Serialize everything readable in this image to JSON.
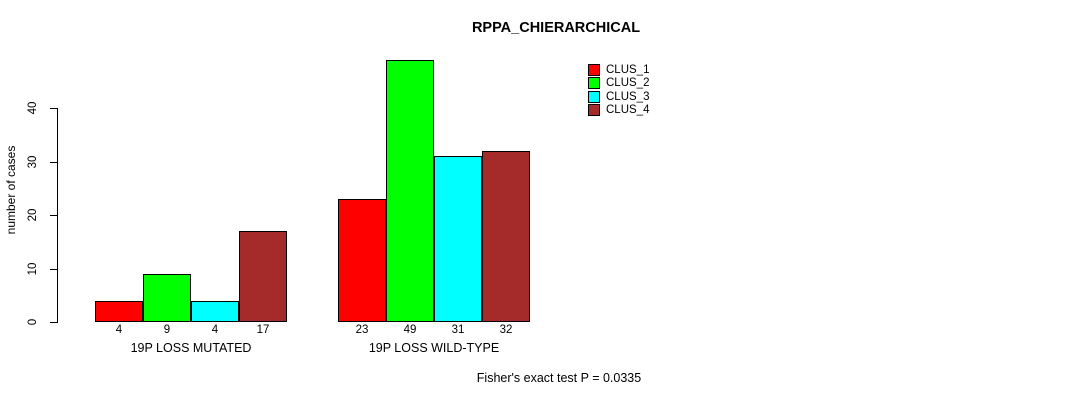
{
  "chart_data": {
    "type": "bar",
    "title": "RPPA_CHIERARCHICAL",
    "ylabel": "number of cases",
    "xlabel": "",
    "ylim": [
      0,
      49
    ],
    "yticks": [
      0,
      10,
      20,
      30,
      40
    ],
    "grid": false,
    "legend_position": "top-right",
    "bar_value_labels": true,
    "categories": [
      "19P LOSS MUTATED",
      "19P LOSS WILD-TYPE"
    ],
    "series": [
      {
        "name": "CLUS_1",
        "color": "#FF0000",
        "values": [
          4,
          23
        ]
      },
      {
        "name": "CLUS_2",
        "color": "#00FF00",
        "values": [
          9,
          49
        ]
      },
      {
        "name": "CLUS_3",
        "color": "#00FFFF",
        "values": [
          4,
          31
        ]
      },
      {
        "name": "CLUS_4",
        "color": "#A52A2A",
        "values": [
          17,
          32
        ]
      }
    ],
    "annotation": "Fisher's exact test P = 0.0335"
  },
  "colors": {
    "background": "#FFFFFF",
    "axis": "#000000",
    "text": "#000000"
  }
}
